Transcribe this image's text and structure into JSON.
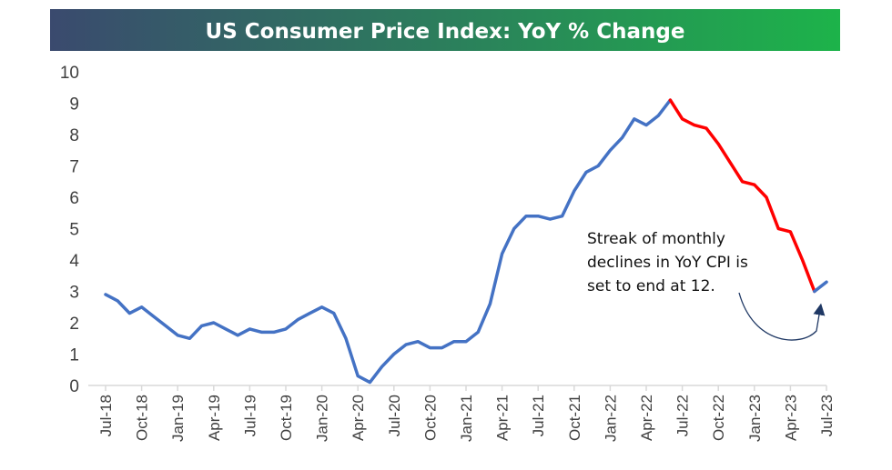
{
  "chart_data": {
    "type": "line",
    "title": "US Consumer Price Index: YoY % Change",
    "ylim": [
      0,
      10
    ],
    "yticks": [
      "0",
      "1",
      "2",
      "3",
      "4",
      "5",
      "6",
      "7",
      "8",
      "9",
      "10"
    ],
    "xticks": [
      "Jul-18",
      "Oct-18",
      "Jan-19",
      "Apr-19",
      "Jul-19",
      "Oct-19",
      "Jan-20",
      "Apr-20",
      "Jul-20",
      "Oct-20",
      "Jan-21",
      "Apr-21",
      "Jul-21",
      "Oct-21",
      "Jan-22",
      "Apr-22",
      "Jul-22",
      "Oct-22",
      "Jan-23",
      "Apr-23",
      "Jul-23"
    ],
    "series": [
      {
        "name": "CPI YoY % (increase / flat)",
        "color": "#4472c4",
        "start_index": 0,
        "values": [
          2.9,
          2.7,
          2.3,
          2.5,
          2.2,
          1.9,
          1.6,
          1.5,
          1.9,
          2.0,
          1.8,
          1.6,
          1.8,
          1.7,
          1.7,
          1.8,
          2.1,
          2.3,
          2.5,
          2.3,
          1.5,
          0.3,
          0.1,
          0.6,
          1.0,
          1.3,
          1.4,
          1.2,
          1.2,
          1.4,
          1.4,
          1.7,
          2.6,
          4.2,
          5.0,
          5.4,
          5.4,
          5.3,
          5.4,
          6.2,
          6.8,
          7.0,
          7.5,
          7.9,
          8.5,
          8.3,
          8.6,
          9.1
        ]
      },
      {
        "name": "CPI YoY % (streak of monthly declines)",
        "color": "#ff0000",
        "start_index": 47,
        "values": [
          9.1,
          8.5,
          8.3,
          8.2,
          7.7,
          7.1,
          6.5,
          6.4,
          6.0,
          5.0,
          4.9,
          4.0,
          3.0
        ]
      },
      {
        "name": "CPI YoY % (projected)",
        "color": "#4472c4",
        "start_index": 59,
        "values": [
          3.0,
          3.3
        ]
      }
    ],
    "annotation": {
      "lines": [
        "Streak of monthly",
        "declines in YoY CPI is",
        "set to end at 12."
      ]
    },
    "colors": {
      "title_gradient_start": "#3a4a6e",
      "title_gradient_end": "#1db34a",
      "axis": "#d9d9d9",
      "arrow": "#1f3864"
    }
  }
}
